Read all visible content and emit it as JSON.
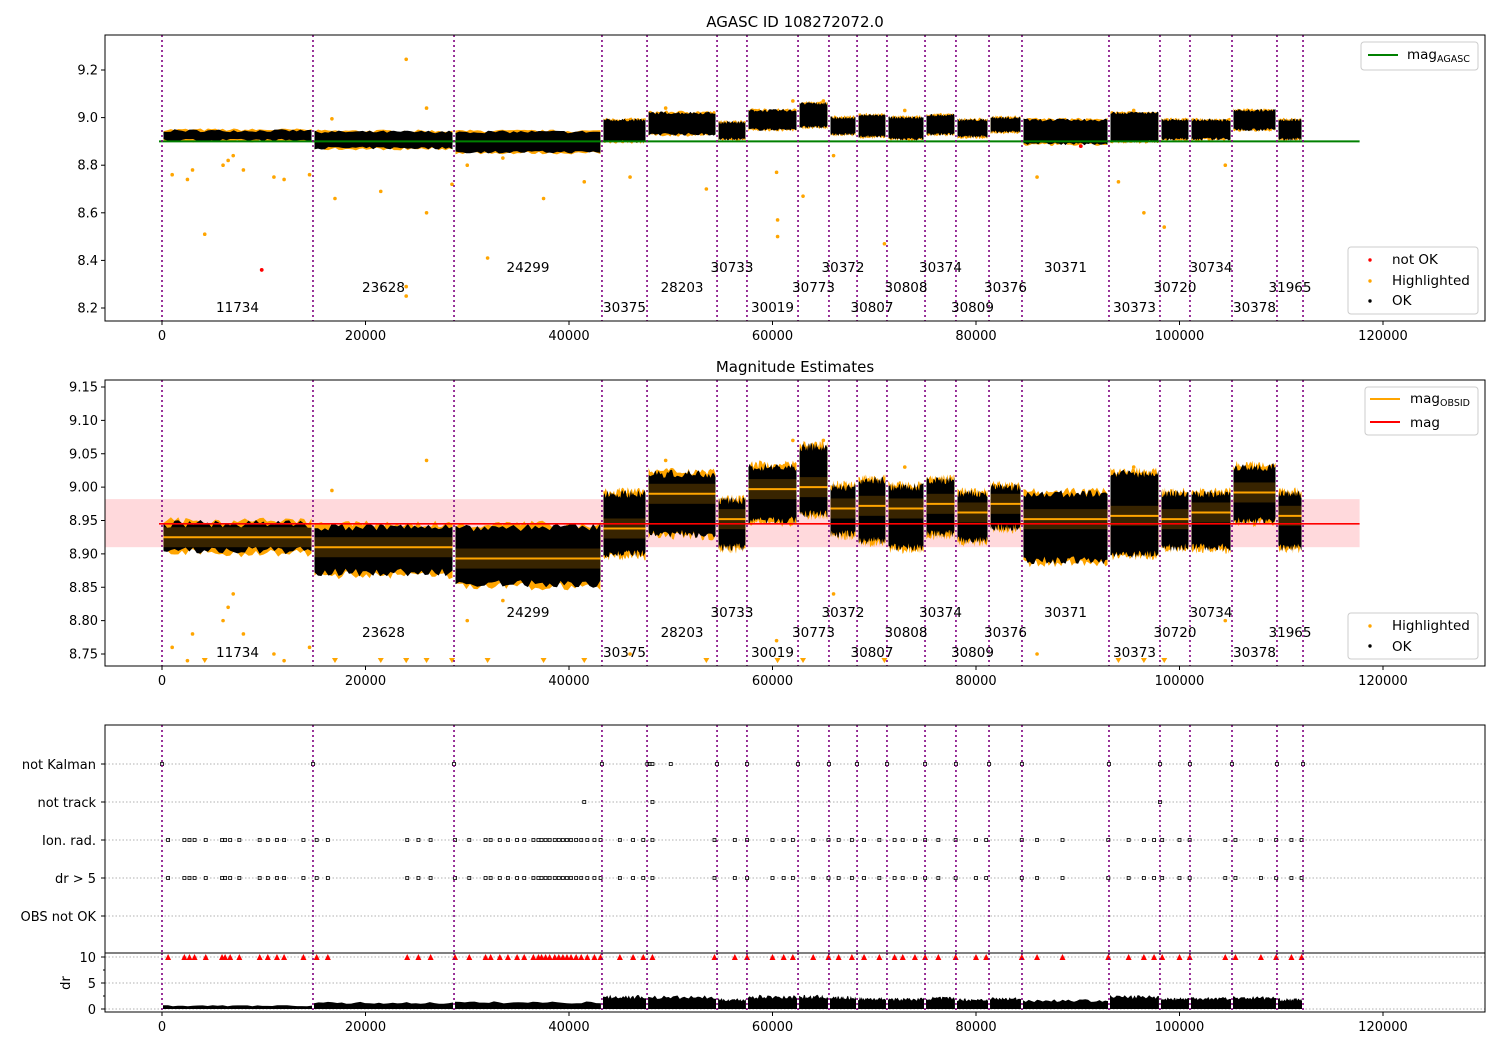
{
  "chart_data": [
    {
      "type": "scatter",
      "title": "AGASC ID 108272072.0",
      "xlim": [
        -5600,
        130000
      ],
      "ylim": [
        8.145,
        9.347
      ],
      "xticks": [
        0,
        20000,
        40000,
        60000,
        80000,
        100000,
        120000
      ],
      "yticks": [
        8.2,
        8.4,
        8.6,
        8.8,
        9.0,
        9.2
      ],
      "mag_agasc": 8.9,
      "mag_agasc_xrange": [
        0,
        117700
      ],
      "legend_upper": {
        "label_main": "mag",
        "label_sub": "AGASC",
        "placement": "upper-right"
      },
      "legend_lower": {
        "items": [
          "not OK",
          "Highlighted",
          "OK"
        ],
        "placement": "lower-right"
      }
    },
    {
      "type": "scatter",
      "title": "Magnitude Estimates",
      "xlim": [
        -5600,
        130000
      ],
      "ylim": [
        8.732,
        9.1605
      ],
      "xticks": [
        0,
        20000,
        40000,
        60000,
        80000,
        100000,
        120000
      ],
      "yticks": [
        8.75,
        8.8,
        8.85,
        8.9,
        8.95,
        9.0,
        9.05,
        9.1,
        9.15
      ],
      "mag": 8.945,
      "mag_band": [
        8.91,
        8.982
      ],
      "legend_upper": {
        "items": [
          {
            "main": "mag",
            "sub": "OBSID"
          },
          {
            "main": "mag",
            "sub": ""
          }
        ],
        "placement": "upper-right"
      },
      "legend_lower": {
        "items": [
          "Highlighted",
          "OK"
        ],
        "placement": "lower-right"
      }
    },
    {
      "type": "scatter",
      "title": "",
      "flag_categories": [
        "not Kalman",
        "not track",
        "Ion. rad.",
        "dr > 5",
        "OBS not OK"
      ],
      "dr_ylabel": "dr",
      "dr_ylim": [
        -0.5,
        10.5
      ],
      "dr_yticks": [
        0,
        5,
        10
      ],
      "xticks": [
        0,
        20000,
        40000,
        60000,
        80000,
        100000,
        120000
      ]
    }
  ],
  "segments": {
    "boundaries": [
      0,
      14840,
      28700,
      43240,
      47670,
      54550,
      57490,
      62510,
      65550,
      68310,
      71250,
      74990,
      78030,
      81280,
      84520,
      93070,
      98080,
      101030,
      105160,
      109580,
      112140
    ],
    "obsids": [
      "11734",
      "23628",
      "24299",
      "30375",
      "28203",
      "30733",
      "30019",
      "30773",
      "30372",
      "30807",
      "30808",
      "30374",
      "30809",
      "30376",
      "30371",
      "30373",
      "30720",
      "30734",
      "30378",
      "31965"
    ],
    "mag_obsid": [
      8.925,
      8.91,
      8.893,
      8.938,
      8.99,
      8.952,
      8.997,
      9.0,
      8.968,
      8.972,
      8.968,
      8.975,
      8.962,
      8.975,
      8.952,
      8.957,
      8.952,
      8.962,
      8.992,
      8.957
    ],
    "ok_lo": [
      8.905,
      8.872,
      8.855,
      8.9,
      8.93,
      8.91,
      8.95,
      8.96,
      8.93,
      8.92,
      8.91,
      8.93,
      8.92,
      8.94,
      8.89,
      8.9,
      8.91,
      8.91,
      8.95,
      8.91
    ],
    "ok_hi": [
      8.945,
      8.94,
      8.94,
      8.99,
      9.02,
      8.98,
      9.03,
      9.06,
      9.0,
      9.01,
      9.0,
      9.01,
      8.99,
      9.0,
      8.99,
      9.02,
      8.99,
      8.99,
      9.03,
      8.99
    ],
    "dr_hi": [
      0.7,
      1.3,
      1.4,
      2.6,
      2.5,
      2.0,
      2.6,
      2.6,
      2.4,
      2.2,
      2.1,
      2.3,
      2.0,
      2.2,
      1.8,
      2.6,
      2.2,
      2.3,
      2.4,
      2.0
    ]
  },
  "highlighted_points": [
    [
      24000,
      9.245
    ],
    [
      24000,
      8.25
    ],
    [
      24000,
      8.29
    ],
    [
      26000,
      9.04
    ],
    [
      26000,
      8.6
    ],
    [
      4200,
      8.51
    ],
    [
      32000,
      8.41
    ],
    [
      37500,
      8.66
    ],
    [
      41500,
      8.73
    ],
    [
      46000,
      8.75
    ],
    [
      53500,
      8.7
    ],
    [
      60500,
      8.5
    ],
    [
      60500,
      8.57
    ],
    [
      60400,
      8.77
    ],
    [
      63000,
      8.67
    ],
    [
      66000,
      8.84
    ],
    [
      71000,
      8.47
    ],
    [
      86000,
      8.75
    ],
    [
      94000,
      8.73
    ],
    [
      96500,
      8.6
    ],
    [
      98500,
      8.54
    ],
    [
      104500,
      8.8
    ],
    [
      17000,
      8.66
    ],
    [
      21500,
      8.69
    ],
    [
      14500,
      8.76
    ],
    [
      1000,
      8.76
    ],
    [
      2500,
      8.74
    ],
    [
      8000,
      8.78
    ],
    [
      11000,
      8.75
    ],
    [
      12000,
      8.74
    ],
    [
      3000,
      8.78
    ],
    [
      6000,
      8.8
    ],
    [
      6500,
      8.82
    ],
    [
      7000,
      8.84
    ],
    [
      33500,
      8.83
    ],
    [
      30000,
      8.8
    ],
    [
      28500,
      8.72
    ],
    [
      16700,
      8.995
    ],
    [
      49500,
      9.04
    ],
    [
      62000,
      9.07
    ],
    [
      65000,
      9.07
    ],
    [
      73000,
      9.03
    ],
    [
      95500,
      9.03
    ]
  ],
  "not_ok_points": [
    [
      9800,
      8.36
    ],
    [
      90300,
      8.88
    ]
  ],
  "flags": {
    "not Kalman": [
      0,
      14840,
      28700,
      43240,
      47700,
      47900,
      48200,
      50000,
      54550,
      57490,
      62510,
      65550,
      68310,
      71250,
      74990,
      78030,
      81280,
      84520,
      93070,
      98080,
      101030,
      105160,
      109580,
      112140
    ],
    "not track": [
      41500,
      48200,
      98080
    ],
    "Ion. rad.": [
      600,
      2200,
      2700,
      3200,
      4300,
      5900,
      6200,
      6700,
      7600,
      9600,
      10400,
      11300,
      12000,
      13900,
      15200,
      16300,
      24100,
      25200,
      26400,
      28800,
      30200,
      31800,
      32300,
      33200,
      34000,
      34900,
      35600,
      36500,
      37000,
      37300,
      37700,
      38100,
      38600,
      39000,
      39400,
      39800,
      40200,
      40700,
      41200,
      41800,
      42500,
      43100,
      45000,
      46300,
      47300,
      48200,
      54300,
      56300,
      57500,
      60000,
      61100,
      62000,
      64000,
      65500,
      66500,
      67800,
      69000,
      70500,
      72000,
      72800,
      74000,
      75000,
      76300,
      78000,
      80000,
      81000,
      84500,
      86000,
      88500,
      93000,
      95000,
      96500,
      97500,
      98300,
      100000,
      101000,
      104500,
      105500,
      108000,
      109500,
      111000,
      112000
    ],
    "dr > 5": [
      600,
      2200,
      2700,
      3200,
      4300,
      5900,
      6200,
      6700,
      7600,
      9600,
      10400,
      11300,
      12000,
      13900,
      15200,
      16300,
      24100,
      25200,
      26400,
      28800,
      30200,
      31800,
      32300,
      33200,
      34000,
      34900,
      35600,
      36500,
      37000,
      37300,
      37700,
      38100,
      38600,
      39000,
      39400,
      39800,
      40200,
      40700,
      41200,
      41800,
      42500,
      43100,
      45000,
      46300,
      47300,
      48200,
      54300,
      56300,
      57500,
      60000,
      61100,
      62000,
      64000,
      65500,
      66500,
      67800,
      69000,
      70500,
      72000,
      72800,
      74000,
      75000,
      76300,
      78000,
      80000,
      81000,
      84500,
      86000,
      88500,
      93000,
      95000,
      96500,
      97500,
      98300,
      100000,
      101000,
      104500,
      105500,
      108000,
      109500,
      111000,
      112000
    ],
    "OBS not OK": []
  },
  "colors": {
    "ok": "#000000",
    "highlighted": "#ffa500",
    "not_ok": "#ff0000",
    "mag_agasc": "#008000",
    "mag": "#ff0000",
    "mag_obsid": "#ffa500",
    "band": "#ffd9dc",
    "obsid_line": "#800080"
  }
}
